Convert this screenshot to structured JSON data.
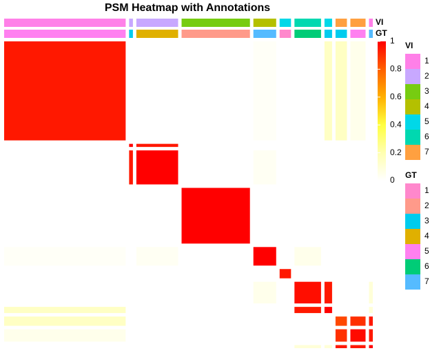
{
  "chart_data": {
    "type": "heatmap",
    "title": "PSM Heatmap with Annotations",
    "sizes": [
      32,
      1,
      11,
      18,
      6,
      3,
      7,
      2,
      3,
      4,
      1
    ],
    "values": [
      [
        0.95,
        0,
        0,
        0,
        0.02,
        0,
        0,
        0.15,
        0.15,
        0.05,
        0
      ],
      [
        0,
        1,
        0.95,
        0,
        0,
        0,
        0,
        0,
        0,
        0,
        0
      ],
      [
        0,
        0.95,
        1,
        0,
        0.03,
        0,
        0,
        0,
        0,
        0,
        0
      ],
      [
        0,
        0,
        0,
        1,
        0,
        0,
        0,
        0,
        0,
        0,
        0
      ],
      [
        0.02,
        0,
        0.03,
        0,
        1,
        0,
        0.05,
        0,
        0,
        0,
        0
      ],
      [
        0,
        0,
        0,
        0,
        0,
        0.95,
        0,
        0,
        0,
        0,
        0
      ],
      [
        0,
        0,
        0,
        0,
        0.05,
        0,
        0.97,
        0.95,
        0,
        0,
        0.1
      ],
      [
        0.15,
        0,
        0,
        0,
        0,
        0,
        0.95,
        1,
        0,
        0,
        0.1
      ],
      [
        0.15,
        0,
        0,
        0,
        0,
        0,
        0,
        0,
        0.85,
        0.9,
        0.95
      ],
      [
        0.05,
        0,
        0,
        0,
        0,
        0,
        0,
        0,
        0.9,
        0.98,
        0.95
      ],
      [
        0,
        0,
        0,
        0,
        0,
        0,
        0.1,
        0.1,
        0.95,
        0.95,
        1
      ]
    ],
    "zlim": [
      0,
      1
    ],
    "zticks": [
      0,
      0.2,
      0.4,
      0.6,
      0.8,
      1
    ],
    "colorscale": [
      {
        "value": 0,
        "color": "#ffffff"
      },
      {
        "value": 0.2,
        "color": "#ffffb0"
      },
      {
        "value": 0.4,
        "color": "#ffff40"
      },
      {
        "value": 0.6,
        "color": "#ffb000"
      },
      {
        "value": 0.8,
        "color": "#ff6000"
      },
      {
        "value": 1,
        "color": "#ff0000"
      }
    ],
    "annotations": [
      {
        "name": "VI",
        "values": [
          1,
          2,
          2,
          3,
          4,
          5,
          6,
          5,
          7,
          7,
          1
        ],
        "levels": [
          1,
          2,
          3,
          4,
          5,
          6,
          7
        ],
        "colors": [
          "#ff80e8",
          "#c8a8ff",
          "#77cc11",
          "#b4c000",
          "#00d8e8",
          "#00d8b0",
          "#ffa040"
        ]
      },
      {
        "name": "GT",
        "values": [
          5,
          3,
          4,
          2,
          7,
          1,
          6,
          3,
          3,
          5,
          7
        ],
        "levels": [
          1,
          2,
          3,
          4,
          5,
          6,
          7
        ],
        "colors": [
          "#ff88cc",
          "#ff9a8a",
          "#00ccee",
          "#e0b000",
          "#ff80f0",
          "#00cc77",
          "#55bbff"
        ]
      }
    ]
  }
}
